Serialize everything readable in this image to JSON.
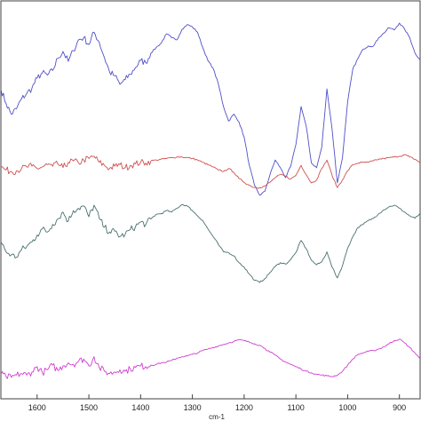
{
  "chart_data": {
    "type": "line",
    "title": "",
    "xlabel": "cm-1",
    "ylabel": "",
    "x_reversed": true,
    "xlim": [
      1670,
      860
    ],
    "xticks": [
      1600,
      1500,
      1400,
      1300,
      1200,
      1100,
      1000,
      900
    ],
    "grid": false,
    "legend": "none",
    "series": [
      {
        "color": "#5050c8",
        "x": [
          1670,
          1660,
          1650,
          1640,
          1630,
          1620,
          1610,
          1600,
          1590,
          1580,
          1570,
          1560,
          1550,
          1540,
          1530,
          1520,
          1510,
          1500,
          1490,
          1480,
          1470,
          1460,
          1450,
          1440,
          1430,
          1420,
          1410,
          1400,
          1390,
          1380,
          1370,
          1360,
          1350,
          1340,
          1330,
          1320,
          1310,
          1300,
          1290,
          1280,
          1270,
          1260,
          1250,
          1240,
          1230,
          1220,
          1210,
          1200,
          1190,
          1180,
          1170,
          1160,
          1150,
          1140,
          1130,
          1120,
          1110,
          1100,
          1090,
          1080,
          1070,
          1060,
          1050,
          1040,
          1030,
          1020,
          1010,
          1000,
          990,
          980,
          970,
          960,
          950,
          940,
          930,
          920,
          910,
          900,
          890,
          880,
          870,
          860
        ],
        "y": [
          4.05,
          3.86,
          3.72,
          3.79,
          3.92,
          3.99,
          4.06,
          4.19,
          4.26,
          4.23,
          4.29,
          4.45,
          4.54,
          4.41,
          4.55,
          4.69,
          4.72,
          4.63,
          4.79,
          4.66,
          4.46,
          4.27,
          4.22,
          4.11,
          4.17,
          4.24,
          4.33,
          4.42,
          4.39,
          4.52,
          4.59,
          4.65,
          4.77,
          4.72,
          4.69,
          4.83,
          4.89,
          4.86,
          4.79,
          4.59,
          4.42,
          4.32,
          4.12,
          3.82,
          3.63,
          3.72,
          3.62,
          3.42,
          3.05,
          2.79,
          2.66,
          2.71,
          2.93,
          3.12,
          3.02,
          2.89,
          3.04,
          3.32,
          3.82,
          3.56,
          3.08,
          3.02,
          3.29,
          4.05,
          3.52,
          2.82,
          3.15,
          3.88,
          4.31,
          4.45,
          4.57,
          4.61,
          4.61,
          4.72,
          4.78,
          4.85,
          4.82,
          4.91,
          4.83,
          4.72,
          4.52,
          4.43
        ]
      },
      {
        "color": "#d05050",
        "x": [
          1670,
          1660,
          1650,
          1640,
          1630,
          1620,
          1610,
          1600,
          1590,
          1580,
          1570,
          1560,
          1550,
          1540,
          1530,
          1520,
          1510,
          1500,
          1490,
          1480,
          1470,
          1460,
          1450,
          1440,
          1430,
          1420,
          1410,
          1400,
          1390,
          1380,
          1370,
          1360,
          1350,
          1340,
          1330,
          1320,
          1310,
          1300,
          1290,
          1280,
          1270,
          1260,
          1250,
          1240,
          1230,
          1220,
          1210,
          1200,
          1190,
          1180,
          1170,
          1160,
          1150,
          1140,
          1130,
          1120,
          1110,
          1100,
          1090,
          1080,
          1070,
          1060,
          1050,
          1040,
          1030,
          1020,
          1010,
          1000,
          990,
          980,
          970,
          960,
          950,
          940,
          930,
          920,
          910,
          900,
          890,
          880,
          870,
          860
        ],
        "y": [
          3.03,
          2.99,
          2.97,
          2.98,
          3.01,
          3.03,
          3.04,
          3.01,
          3.03,
          3.06,
          3.04,
          3.07,
          3.02,
          3.09,
          3.11,
          3.08,
          3.12,
          3.14,
          3.17,
          3.09,
          3.05,
          3.01,
          3.04,
          3.06,
          3.02,
          3.05,
          3.07,
          3.09,
          3.08,
          3.11,
          3.12,
          3.13,
          3.14,
          3.15,
          3.16,
          3.16,
          3.15,
          3.14,
          3.12,
          3.09,
          3.06,
          3.03,
          2.99,
          2.97,
          3.01,
          2.96,
          2.88,
          2.83,
          2.79,
          2.76,
          2.76,
          2.78,
          2.83,
          2.89,
          2.93,
          2.91,
          2.87,
          2.92,
          3.05,
          2.93,
          2.82,
          2.86,
          3.01,
          3.12,
          2.92,
          2.76,
          2.86,
          2.98,
          3.06,
          3.08,
          3.09,
          3.09,
          3.11,
          3.13,
          3.14,
          3.15,
          3.16,
          3.17,
          3.19,
          3.16,
          3.13,
          3.09
        ]
      },
      {
        "color": "#4a7070",
        "x": [
          1670,
          1660,
          1650,
          1640,
          1630,
          1620,
          1610,
          1600,
          1590,
          1580,
          1570,
          1560,
          1550,
          1540,
          1530,
          1520,
          1510,
          1500,
          1490,
          1480,
          1470,
          1460,
          1450,
          1440,
          1430,
          1420,
          1410,
          1400,
          1390,
          1380,
          1370,
          1360,
          1350,
          1340,
          1330,
          1320,
          1310,
          1300,
          1290,
          1280,
          1270,
          1260,
          1250,
          1240,
          1230,
          1220,
          1210,
          1200,
          1190,
          1180,
          1170,
          1160,
          1150,
          1140,
          1130,
          1120,
          1110,
          1100,
          1090,
          1080,
          1070,
          1060,
          1050,
          1040,
          1030,
          1020,
          1010,
          1000,
          990,
          980,
          970,
          960,
          950,
          940,
          930,
          920,
          910,
          900,
          890,
          880,
          870,
          860
        ],
        "y": [
          2.05,
          1.92,
          1.88,
          1.85,
          1.95,
          1.99,
          2.05,
          2.14,
          2.22,
          2.18,
          2.28,
          2.35,
          2.44,
          2.32,
          2.46,
          2.49,
          2.52,
          2.38,
          2.53,
          2.36,
          2.24,
          2.18,
          2.19,
          2.12,
          2.15,
          2.21,
          2.25,
          2.31,
          2.28,
          2.35,
          2.41,
          2.42,
          2.46,
          2.44,
          2.49,
          2.54,
          2.52,
          2.46,
          2.39,
          2.33,
          2.22,
          2.12,
          2.02,
          1.92,
          1.91,
          1.87,
          1.78,
          1.72,
          1.63,
          1.55,
          1.52,
          1.57,
          1.65,
          1.73,
          1.78,
          1.76,
          1.82,
          1.91,
          2.07,
          1.96,
          1.81,
          1.75,
          1.79,
          1.92,
          1.72,
          1.58,
          1.74,
          1.97,
          2.12,
          2.24,
          2.28,
          2.33,
          2.36,
          2.42,
          2.47,
          2.51,
          2.53,
          2.49,
          2.44,
          2.39,
          2.36,
          2.42
        ]
      },
      {
        "color": "#d040d0",
        "x": [
          1670,
          1660,
          1650,
          1640,
          1630,
          1620,
          1610,
          1600,
          1590,
          1580,
          1570,
          1560,
          1550,
          1540,
          1530,
          1520,
          1510,
          1500,
          1490,
          1480,
          1470,
          1460,
          1450,
          1440,
          1430,
          1420,
          1410,
          1400,
          1390,
          1380,
          1370,
          1360,
          1350,
          1340,
          1330,
          1320,
          1310,
          1300,
          1290,
          1280,
          1270,
          1260,
          1250,
          1240,
          1230,
          1220,
          1210,
          1200,
          1190,
          1180,
          1170,
          1160,
          1150,
          1140,
          1130,
          1120,
          1110,
          1100,
          1090,
          1080,
          1070,
          1060,
          1050,
          1040,
          1030,
          1020,
          1010,
          1000,
          990,
          980,
          970,
          960,
          950,
          940,
          930,
          920,
          910,
          900,
          890,
          880,
          870,
          860
        ],
        "y": [
          0.32,
          0.29,
          0.28,
          0.31,
          0.33,
          0.31,
          0.35,
          0.42,
          0.34,
          0.38,
          0.44,
          0.37,
          0.43,
          0.47,
          0.45,
          0.49,
          0.52,
          0.43,
          0.55,
          0.41,
          0.36,
          0.33,
          0.35,
          0.38,
          0.36,
          0.39,
          0.41,
          0.43,
          0.42,
          0.44,
          0.45,
          0.47,
          0.48,
          0.5,
          0.53,
          0.55,
          0.56,
          0.58,
          0.6,
          0.63,
          0.65,
          0.67,
          0.69,
          0.71,
          0.73,
          0.75,
          0.77,
          0.76,
          0.74,
          0.72,
          0.7,
          0.66,
          0.61,
          0.57,
          0.52,
          0.48,
          0.45,
          0.42,
          0.39,
          0.36,
          0.34,
          0.32,
          0.31,
          0.3,
          0.29,
          0.31,
          0.36,
          0.44,
          0.52,
          0.58,
          0.6,
          0.62,
          0.63,
          0.65,
          0.68,
          0.72,
          0.76,
          0.78,
          0.73,
          0.67,
          0.6,
          0.52
        ]
      }
    ]
  }
}
